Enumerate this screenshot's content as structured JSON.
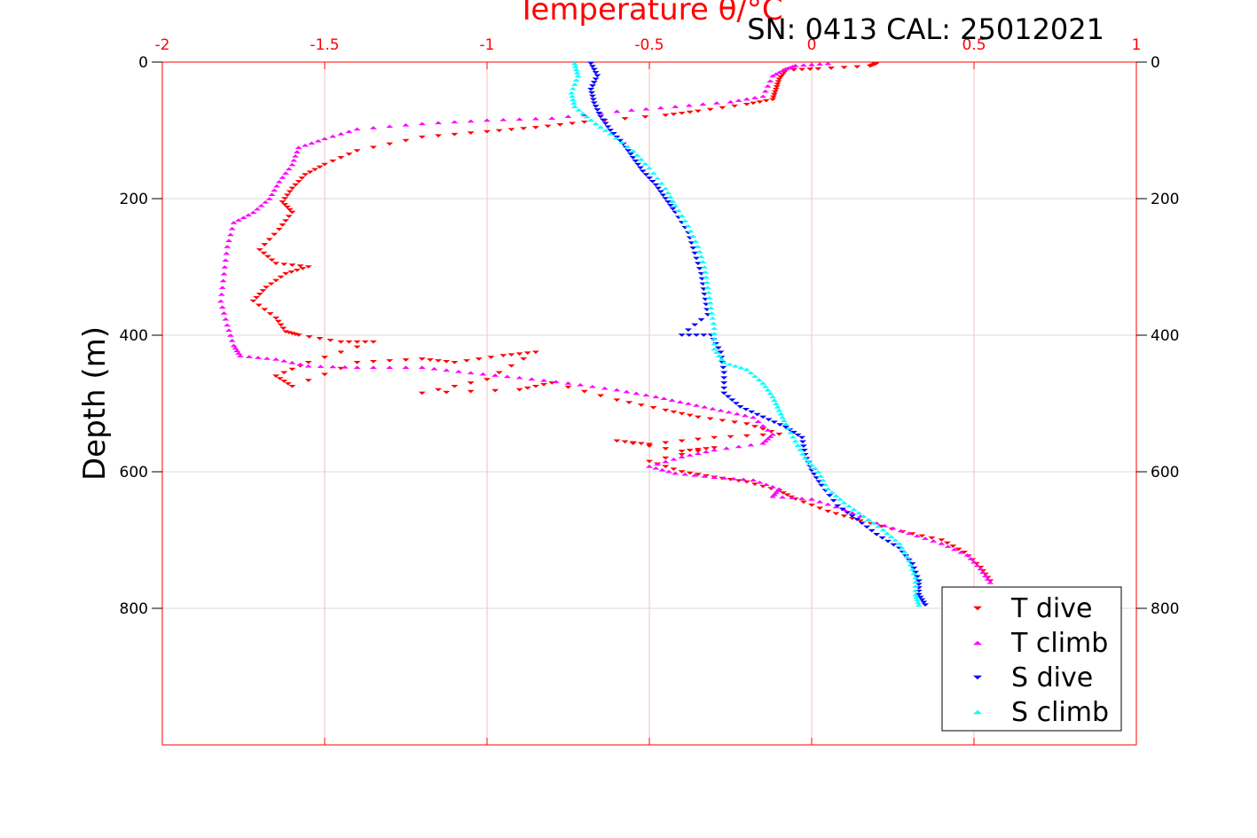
{
  "chart_data": {
    "type": "scatter",
    "title": "Temperature θ/°C",
    "annotation": "SN: 0413  CAL: 25012021",
    "xlabel": "Temperature θ/°C",
    "ylabel": "Depth (m)",
    "xlim": [
      -2,
      1
    ],
    "ylim": [
      0,
      1000
    ],
    "y_reversed": true,
    "x_axis_position": "top",
    "grid": true,
    "legend_position": "bottom-right",
    "x_ticks": [
      "-2",
      "-1.5",
      "-1",
      "-0.5",
      "0",
      "0.5",
      "1"
    ],
    "y_ticks": [
      "0",
      "200",
      "400",
      "600",
      "800"
    ],
    "colors": {
      "x_axis": "#ff0000",
      "y_axis": "#000000",
      "grid_x": "#f2c0c0",
      "grid_y": "#d9d9d9"
    },
    "series": [
      {
        "name": "T dive",
        "marker": "triangle-down",
        "color": "#ff0000",
        "points": [
          [
            0.2,
            2
          ],
          [
            0.18,
            6
          ],
          [
            0.02,
            10
          ],
          [
            -0.08,
            12
          ],
          [
            -0.1,
            25
          ],
          [
            -0.11,
            40
          ],
          [
            -0.12,
            55
          ],
          [
            -0.2,
            62
          ],
          [
            -0.35,
            72
          ],
          [
            -0.45,
            78
          ],
          [
            -0.7,
            88
          ],
          [
            -0.85,
            96
          ],
          [
            -1.0,
            102
          ],
          [
            -1.2,
            110
          ],
          [
            -1.4,
            130
          ],
          [
            -1.5,
            150
          ],
          [
            -1.56,
            165
          ],
          [
            -1.6,
            185
          ],
          [
            -1.63,
            205
          ],
          [
            -1.6,
            220
          ],
          [
            -1.64,
            245
          ],
          [
            -1.7,
            275
          ],
          [
            -1.65,
            295
          ],
          [
            -1.55,
            300
          ],
          [
            -1.62,
            310
          ],
          [
            -1.68,
            330
          ],
          [
            -1.72,
            350
          ],
          [
            -1.65,
            375
          ],
          [
            -1.62,
            395
          ],
          [
            -1.58,
            400
          ],
          [
            -1.45,
            410
          ],
          [
            -1.35,
            410
          ],
          [
            -1.55,
            440
          ],
          [
            -1.65,
            460
          ],
          [
            -1.6,
            475
          ],
          [
            -1.4,
            440
          ],
          [
            -1.2,
            435
          ],
          [
            -1.1,
            440
          ],
          [
            -0.95,
            430
          ],
          [
            -0.85,
            425
          ],
          [
            -1.0,
            465
          ],
          [
            -1.2,
            485
          ],
          [
            -0.9,
            480
          ],
          [
            -0.8,
            470
          ],
          [
            -0.6,
            495
          ],
          [
            -0.45,
            510
          ],
          [
            -0.35,
            520
          ],
          [
            -0.2,
            530
          ],
          [
            -0.1,
            545
          ],
          [
            -0.3,
            550
          ],
          [
            -0.5,
            560
          ],
          [
            -0.6,
            555
          ],
          [
            -0.4,
            570
          ],
          [
            -0.3,
            565
          ],
          [
            -0.5,
            585
          ],
          [
            -0.4,
            600
          ],
          [
            -0.3,
            608
          ],
          [
            -0.2,
            615
          ],
          [
            -0.1,
            628
          ],
          [
            -0.05,
            640
          ],
          [
            0.05,
            658
          ],
          [
            0.15,
            672
          ],
          [
            0.28,
            688
          ],
          [
            0.4,
            700
          ],
          [
            0.47,
            718
          ],
          [
            0.52,
            740
          ],
          [
            0.55,
            760
          ]
        ]
      },
      {
        "name": "T climb",
        "marker": "triangle-up",
        "color": "#ff00ff",
        "points": [
          [
            0.05,
            2
          ],
          [
            -0.05,
            5
          ],
          [
            -0.08,
            10
          ],
          [
            -0.12,
            20
          ],
          [
            -0.15,
            50
          ],
          [
            -0.25,
            58
          ],
          [
            -0.42,
            65
          ],
          [
            -0.6,
            72
          ],
          [
            -0.8,
            82
          ],
          [
            -1.0,
            85
          ],
          [
            -1.2,
            90
          ],
          [
            -1.4,
            98
          ],
          [
            -1.5,
            112
          ],
          [
            -1.58,
            125
          ],
          [
            -1.6,
            150
          ],
          [
            -1.64,
            175
          ],
          [
            -1.67,
            200
          ],
          [
            -1.72,
            220
          ],
          [
            -1.78,
            235
          ],
          [
            -1.8,
            270
          ],
          [
            -1.81,
            310
          ],
          [
            -1.82,
            350
          ],
          [
            -1.8,
            385
          ],
          [
            -1.78,
            415
          ],
          [
            -1.76,
            430
          ],
          [
            -1.65,
            435
          ],
          [
            -1.55,
            445
          ],
          [
            -1.4,
            447
          ],
          [
            -1.2,
            447
          ],
          [
            -1.05,
            455
          ],
          [
            -0.9,
            462
          ],
          [
            -0.75,
            470
          ],
          [
            -0.6,
            480
          ],
          [
            -0.48,
            490
          ],
          [
            -0.38,
            500
          ],
          [
            -0.28,
            510
          ],
          [
            -0.18,
            520
          ],
          [
            -0.12,
            545
          ],
          [
            -0.15,
            558
          ],
          [
            -0.3,
            568
          ],
          [
            -0.4,
            578
          ],
          [
            -0.5,
            592
          ],
          [
            -0.42,
            602
          ],
          [
            -0.3,
            608
          ],
          [
            -0.18,
            612
          ],
          [
            -0.1,
            625
          ],
          [
            -0.12,
            636
          ],
          [
            0.0,
            640
          ],
          [
            0.1,
            655
          ],
          [
            0.2,
            675
          ],
          [
            0.3,
            690
          ],
          [
            0.4,
            705
          ],
          [
            0.48,
            722
          ],
          [
            0.52,
            742
          ],
          [
            0.55,
            762
          ]
        ]
      },
      {
        "name": "S dive",
        "marker": "triangle-down",
        "color": "#0000ff",
        "points": [
          [
            -0.68,
            2
          ],
          [
            -0.66,
            20
          ],
          [
            -0.68,
            40
          ],
          [
            -0.67,
            60
          ],
          [
            -0.65,
            80
          ],
          [
            -0.62,
            100
          ],
          [
            -0.58,
            120
          ],
          [
            -0.55,
            140
          ],
          [
            -0.52,
            160
          ],
          [
            -0.48,
            180
          ],
          [
            -0.45,
            200
          ],
          [
            -0.42,
            220
          ],
          [
            -0.38,
            250
          ],
          [
            -0.36,
            280
          ],
          [
            -0.34,
            310
          ],
          [
            -0.33,
            340
          ],
          [
            -0.32,
            370
          ],
          [
            -0.4,
            400
          ],
          [
            -0.31,
            400
          ],
          [
            -0.28,
            425
          ],
          [
            -0.27,
            455
          ],
          [
            -0.27,
            485
          ],
          [
            -0.22,
            505
          ],
          [
            -0.15,
            520
          ],
          [
            -0.08,
            535
          ],
          [
            -0.03,
            550
          ],
          [
            -0.02,
            575
          ],
          [
            0.0,
            598
          ],
          [
            0.03,
            620
          ],
          [
            0.08,
            650
          ],
          [
            0.14,
            670
          ],
          [
            0.2,
            692
          ],
          [
            0.27,
            712
          ],
          [
            0.31,
            735
          ],
          [
            0.33,
            760
          ],
          [
            0.33,
            780
          ],
          [
            0.35,
            795
          ]
        ]
      },
      {
        "name": "S climb",
        "marker": "triangle-up",
        "color": "#00ffff",
        "points": [
          [
            -0.73,
            2
          ],
          [
            -0.72,
            20
          ],
          [
            -0.74,
            45
          ],
          [
            -0.73,
            65
          ],
          [
            -0.68,
            85
          ],
          [
            -0.62,
            105
          ],
          [
            -0.55,
            130
          ],
          [
            -0.5,
            155
          ],
          [
            -0.45,
            185
          ],
          [
            -0.42,
            210
          ],
          [
            -0.38,
            240
          ],
          [
            -0.35,
            270
          ],
          [
            -0.33,
            300
          ],
          [
            -0.32,
            330
          ],
          [
            -0.31,
            360
          ],
          [
            -0.3,
            390
          ],
          [
            -0.3,
            420
          ],
          [
            -0.27,
            440
          ],
          [
            -0.2,
            450
          ],
          [
            -0.15,
            470
          ],
          [
            -0.12,
            490
          ],
          [
            -0.1,
            510
          ],
          [
            -0.08,
            530
          ],
          [
            -0.05,
            555
          ],
          [
            -0.02,
            580
          ],
          [
            0.02,
            600
          ],
          [
            0.05,
            625
          ],
          [
            0.1,
            645
          ],
          [
            0.16,
            665
          ],
          [
            0.22,
            685
          ],
          [
            0.27,
            705
          ],
          [
            0.3,
            730
          ],
          [
            0.32,
            755
          ],
          [
            0.32,
            780
          ],
          [
            0.33,
            795
          ]
        ]
      }
    ]
  }
}
